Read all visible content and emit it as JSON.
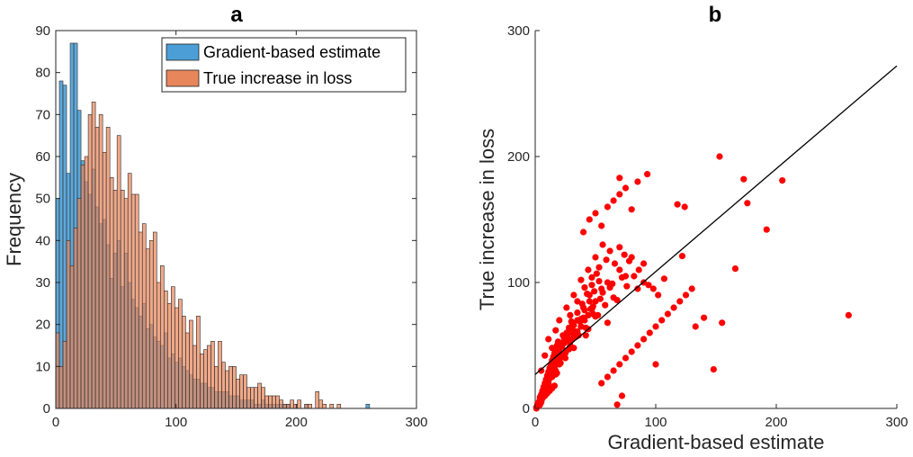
{
  "chart_data": [
    {
      "type": "bar",
      "title": "a",
      "xlabel": "",
      "ylabel": "Frequency",
      "xlim": [
        0,
        300
      ],
      "ylim": [
        0,
        90
      ],
      "xticks": [
        "0",
        "100",
        "200",
        "300"
      ],
      "yticks": [
        "0",
        "10",
        "20",
        "30",
        "40",
        "50",
        "60",
        "70",
        "80",
        "90"
      ],
      "bin_width": 3,
      "legend_position": "top-right",
      "colors": {
        "gradient": "#4c9fd6",
        "true": "#e8865b",
        "line": "#000000"
      },
      "series": [
        {
          "name": "Gradient-based estimate",
          "values": [
            50,
            78,
            77,
            56,
            87,
            87,
            71,
            59,
            54,
            51,
            57,
            48,
            44,
            45,
            39,
            31,
            37,
            40,
            29,
            37,
            30,
            26,
            24,
            22,
            25,
            19,
            20,
            17,
            16,
            15,
            18,
            12,
            13,
            11,
            12,
            10,
            9,
            8,
            7,
            7,
            6,
            6,
            5,
            5,
            4,
            4,
            4,
            4,
            3,
            3,
            3,
            2,
            2,
            2,
            2,
            1,
            1,
            2,
            1,
            1,
            1,
            1,
            1,
            1,
            1,
            0,
            0,
            0,
            0,
            1,
            0,
            0,
            0,
            0,
            0,
            0,
            0,
            0,
            0,
            0,
            0,
            0,
            0,
            0,
            0,
            0,
            1,
            0,
            0,
            0,
            0,
            0,
            0,
            0,
            0,
            0,
            0,
            0,
            0,
            0
          ]
        },
        {
          "name": "True increase in loss",
          "values": [
            18,
            10,
            16,
            40,
            34,
            43,
            50,
            58,
            60,
            70,
            73,
            67,
            70,
            61,
            67,
            55,
            52,
            65,
            52,
            50,
            56,
            51,
            51,
            42,
            44,
            38,
            40,
            42,
            30,
            34,
            28,
            25,
            29,
            24,
            26,
            22,
            18,
            21,
            15,
            22,
            13,
            14,
            15,
            16,
            10,
            16,
            11,
            9,
            10,
            10,
            7,
            8,
            8,
            5,
            5,
            5,
            6,
            5,
            3,
            3,
            3,
            3,
            2,
            1,
            1,
            2,
            1,
            2,
            0,
            1,
            1,
            0,
            4,
            2,
            1,
            0,
            1,
            0,
            1,
            0,
            0,
            0,
            0,
            0,
            0,
            0,
            0,
            0,
            0,
            0,
            0,
            0,
            0,
            0,
            0,
            0,
            0,
            0,
            0,
            0
          ]
        }
      ]
    },
    {
      "type": "scatter",
      "title": "b",
      "xlabel": "Gradient-based estimate",
      "ylabel": "True increase in loss",
      "xlim": [
        0,
        300
      ],
      "ylim": [
        0,
        300
      ],
      "xticks": [
        "0",
        "100",
        "200",
        "300"
      ],
      "yticks": [
        "0",
        "100",
        "200",
        "300"
      ],
      "colors": {
        "points": "#ff0000",
        "fit_line": "#000000"
      },
      "fit_line": {
        "x": [
          0,
          300
        ],
        "y": [
          27,
          272
        ]
      },
      "points": {
        "x": [
          10,
          12,
          15,
          18,
          20,
          22,
          25,
          28,
          30,
          32,
          35,
          38,
          40,
          42,
          45,
          48,
          50,
          55,
          60,
          65,
          70,
          75,
          80,
          85,
          90,
          8,
          10,
          12,
          15,
          18,
          20,
          24,
          28,
          32,
          36,
          40,
          44,
          48,
          52,
          56,
          60,
          64,
          68,
          72,
          76,
          5,
          7,
          9,
          11,
          13,
          15,
          17,
          19,
          21,
          23,
          25,
          27,
          29,
          31,
          33,
          35,
          37,
          39,
          41,
          43,
          45,
          47,
          49,
          51,
          53,
          4,
          6,
          8,
          10,
          12,
          14,
          16,
          18,
          20,
          22,
          26,
          30,
          34,
          38,
          42,
          46,
          50,
          54,
          58,
          62,
          3,
          5,
          7,
          9,
          11,
          14,
          17,
          20,
          23,
          26,
          29,
          32,
          35,
          38,
          41,
          44,
          47,
          2,
          4,
          6,
          8,
          10,
          12,
          14,
          16,
          18,
          20,
          22,
          24,
          26,
          28,
          30,
          2,
          3,
          4,
          5,
          6,
          7,
          8,
          9,
          10,
          11,
          12,
          13,
          14,
          15,
          16,
          17,
          18,
          19,
          1,
          2,
          3,
          4,
          5,
          6,
          7,
          8,
          9,
          10,
          11,
          12,
          13,
          14,
          15,
          1,
          2,
          3,
          4,
          6,
          8,
          10,
          12,
          14,
          16,
          5,
          8,
          11,
          14,
          17,
          20,
          23,
          26,
          29,
          32,
          35,
          38,
          41,
          44,
          47,
          50,
          53,
          56,
          59,
          62,
          66,
          70,
          74,
          78,
          82,
          86,
          90,
          94,
          98,
          102,
          55,
          60,
          65,
          70,
          75,
          80,
          85,
          90,
          95,
          100,
          105,
          110,
          115,
          120,
          125,
          130,
          40,
          45,
          50,
          55,
          60,
          65,
          70,
          75,
          80,
          85,
          93,
          153,
          173,
          260,
          205,
          192,
          176,
          166,
          155,
          148,
          124,
          122,
          118,
          107,
          100,
          133,
          140,
          70,
          72,
          68
        ],
        "y": [
          20,
          30,
          35,
          28,
          45,
          50,
          40,
          55,
          60,
          48,
          70,
          65,
          80,
          58,
          90,
          75,
          85,
          95,
          100,
          88,
          110,
          105,
          120,
          95,
          115,
          10,
          15,
          25,
          32,
          40,
          38,
          52,
          47,
          66,
          58,
          72,
          63,
          81,
          74,
          92,
          68,
          99,
          86,
          104,
          97,
          5,
          12,
          18,
          22,
          16,
          34,
          27,
          43,
          36,
          51,
          44,
          59,
          53,
          67,
          61,
          76,
          69,
          83,
          78,
          91,
          85,
          98,
          93,
          107,
          101,
          3,
          8,
          14,
          19,
          24,
          29,
          33,
          39,
          42,
          49,
          54,
          62,
          57,
          71,
          64,
          79,
          73,
          87,
          82,
          96,
          2,
          6,
          11,
          15,
          20,
          25,
          30,
          35,
          41,
          46,
          50,
          56,
          61,
          65,
          70,
          74,
          79,
          4,
          9,
          13,
          17,
          21,
          26,
          31,
          37,
          41,
          45,
          52,
          56,
          60,
          64,
          69,
          2,
          5,
          8,
          11,
          14,
          17,
          20,
          23,
          26,
          29,
          32,
          35,
          38,
          41,
          44,
          47,
          50,
          53,
          1,
          3,
          5,
          7,
          9,
          12,
          15,
          18,
          21,
          24,
          27,
          30,
          33,
          36,
          39,
          0,
          2,
          4,
          6,
          8,
          10,
          12,
          14,
          16,
          18,
          30,
          42,
          55,
          48,
          62,
          70,
          58,
          80,
          74,
          90,
          85,
          102,
          96,
          110,
          104,
          120,
          112,
          130,
          118,
          125,
          115,
          128,
          122,
          117,
          105,
          110,
          100,
          98,
          95,
          90,
          20,
          25,
          30,
          35,
          40,
          45,
          50,
          55,
          60,
          65,
          70,
          75,
          80,
          85,
          90,
          95,
          140,
          150,
          155,
          145,
          160,
          165,
          170,
          175,
          158,
          180,
          186,
          200,
          182,
          74,
          181,
          142,
          163,
          111,
          68,
          31,
          160,
          121,
          162,
          103,
          35,
          65,
          72,
          183,
          10,
          3
        ]
      }
    }
  ]
}
